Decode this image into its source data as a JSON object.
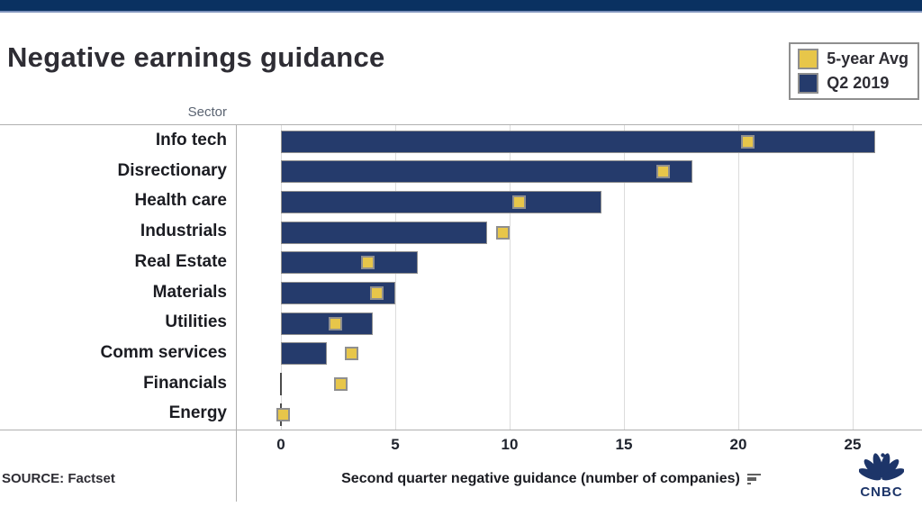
{
  "page": {
    "title": "Negative earnings guidance",
    "sector_axis_header": "Sector",
    "source_label": "SOURCE: Factset",
    "accent_colors": {
      "header_strip": "#0a3161",
      "bar_navy": "#253b6c",
      "marker_yellow": "#e7c64a",
      "gridline": "#dcdcdc",
      "frame_line": "#b0b0b0"
    }
  },
  "legend": {
    "items": [
      {
        "label": "5-year Avg",
        "color": "#e7c64a"
      },
      {
        "label": "Q2 2019",
        "color": "#253b6c"
      }
    ]
  },
  "chart_data": {
    "type": "bar",
    "orientation": "horizontal",
    "title": "Negative earnings guidance",
    "category_axis_label": "Sector",
    "xlabel": "Second quarter negative guidance (number of companies)",
    "xlim": [
      0,
      28
    ],
    "xticks": [
      0,
      5,
      10,
      15,
      20,
      25
    ],
    "grid": true,
    "legend_position": "top-right",
    "categories": [
      "Info tech",
      "Disrectionary",
      "Health care",
      "Industrials",
      "Real Estate",
      "Materials",
      "Utilities",
      "Comm services",
      "Financials",
      "Energy"
    ],
    "series": [
      {
        "name": "Q2 2019",
        "style": "bar",
        "color": "#253b6c",
        "values": [
          26,
          18,
          14,
          9,
          6,
          5,
          4,
          2,
          0,
          0
        ]
      },
      {
        "name": "5-year Avg",
        "style": "square-marker",
        "color": "#e7c64a",
        "values": [
          20.4,
          16.7,
          10.4,
          9.7,
          3.8,
          4.2,
          2.4,
          3.1,
          2.6,
          0.1
        ]
      }
    ]
  },
  "branding": {
    "logo_text": "CNBC"
  }
}
